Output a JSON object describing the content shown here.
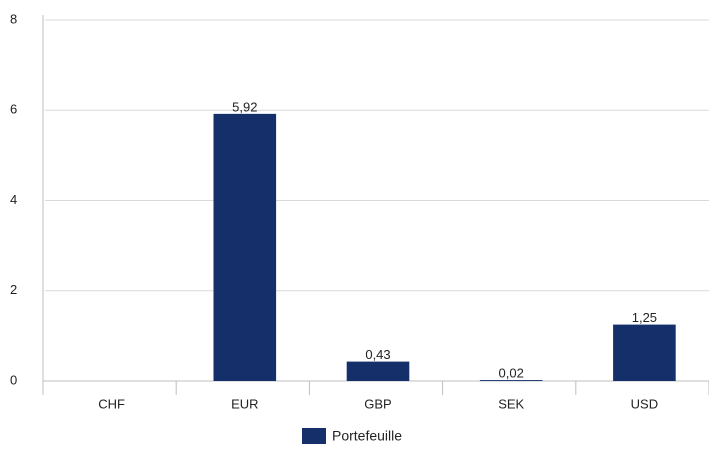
{
  "chart_data": {
    "type": "bar",
    "categories": [
      "CHF",
      "EUR",
      "GBP",
      "SEK",
      "USD"
    ],
    "series": [
      {
        "name": "Portefeuille",
        "color": "#142f69",
        "values": [
          null,
          5.92,
          0.43,
          0.02,
          1.25
        ],
        "value_labels": [
          null,
          "5,92",
          "0,43",
          "0,02",
          "1,25"
        ]
      }
    ],
    "ylim": [
      0,
      8
    ],
    "yticks": [
      0,
      2,
      4,
      6,
      8
    ],
    "grid": true,
    "legend": "bottom"
  }
}
